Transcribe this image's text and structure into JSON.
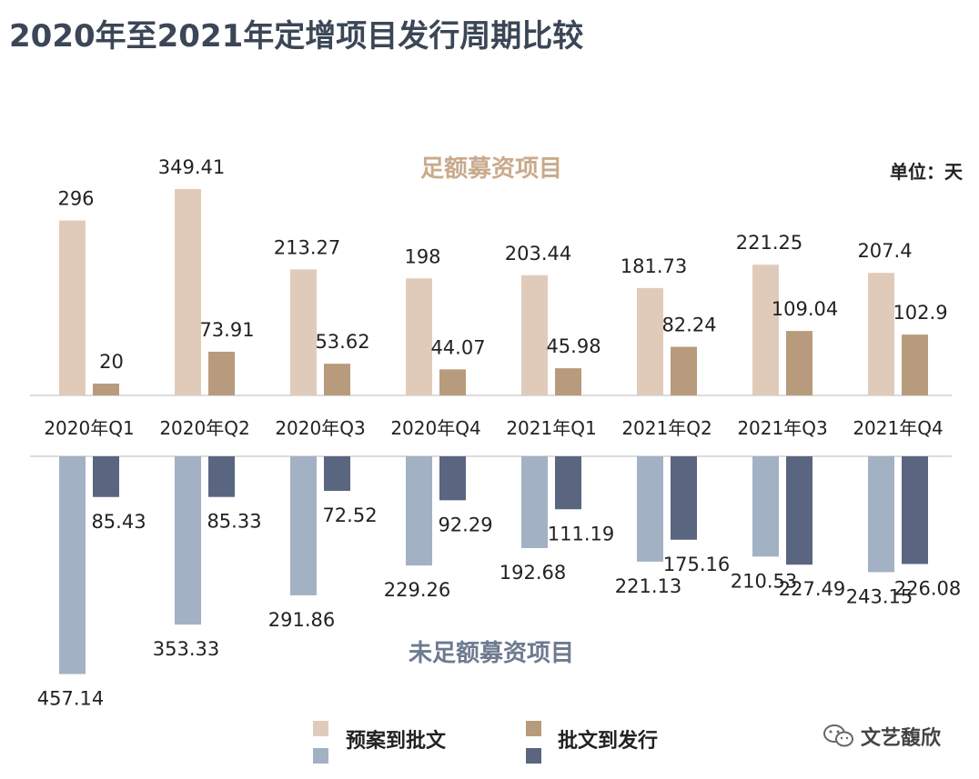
{
  "title": "2020年至2021年定增项目发行周期比较",
  "unit": "单位：天",
  "watermark": "文艺馥欣",
  "chart_data": {
    "type": "bar",
    "categories": [
      "2020年Q1",
      "2020年Q2",
      "2020年Q3",
      "2020年Q4",
      "2021年Q1",
      "2021年Q2",
      "2021年Q3",
      "2021年Q4"
    ],
    "panels": [
      {
        "title": "足额募资项目",
        "series": [
          {
            "name": "预案到批文",
            "color": "#e0cbbb",
            "values": [
              296,
              349.41,
              213.27,
              198,
              203.44,
              181.73,
              221.25,
              207.4
            ],
            "labels": [
              "296",
              "349.41",
              "213.27",
              "198",
              "203.44",
              "181.73",
              "221.25",
              "207.4"
            ]
          },
          {
            "name": "批文到发行",
            "color": "#b89b7c",
            "values": [
              20,
              73.91,
              53.62,
              44.07,
              45.98,
              82.24,
              109.04,
              102.9
            ],
            "labels": [
              "20",
              "73.91",
              "53.62",
              "44.07",
              "45.98",
              "82.24",
              "109.04",
              "102.9"
            ]
          }
        ]
      },
      {
        "title": "未足额募资项目",
        "series": [
          {
            "name": "预案到批文",
            "color": "#a3b1c4",
            "values": [
              457.14,
              353.33,
              291.86,
              229.26,
              192.68,
              221.13,
              210.53,
              243.15
            ],
            "labels": [
              "457.14",
              "353.33",
              "291.86",
              "229.26",
              "192.68",
              "221.13",
              "210.53",
              "243.15"
            ]
          },
          {
            "name": "批文到发行",
            "color": "#5a6580",
            "values": [
              85.43,
              85.33,
              72.52,
              92.29,
              111.19,
              175.16,
              227.49,
              226.08
            ],
            "labels": [
              "85.43",
              "85.33",
              "72.52",
              "92.29",
              "111.19",
              "175.16",
              "227.49",
              "226.08"
            ]
          }
        ]
      }
    ],
    "colors": {
      "title": "#3b4656",
      "top_panel_title": "#c9aa8c",
      "bottom_panel_title": "#6e7a90",
      "axis_line": "#d0d0d0"
    }
  }
}
